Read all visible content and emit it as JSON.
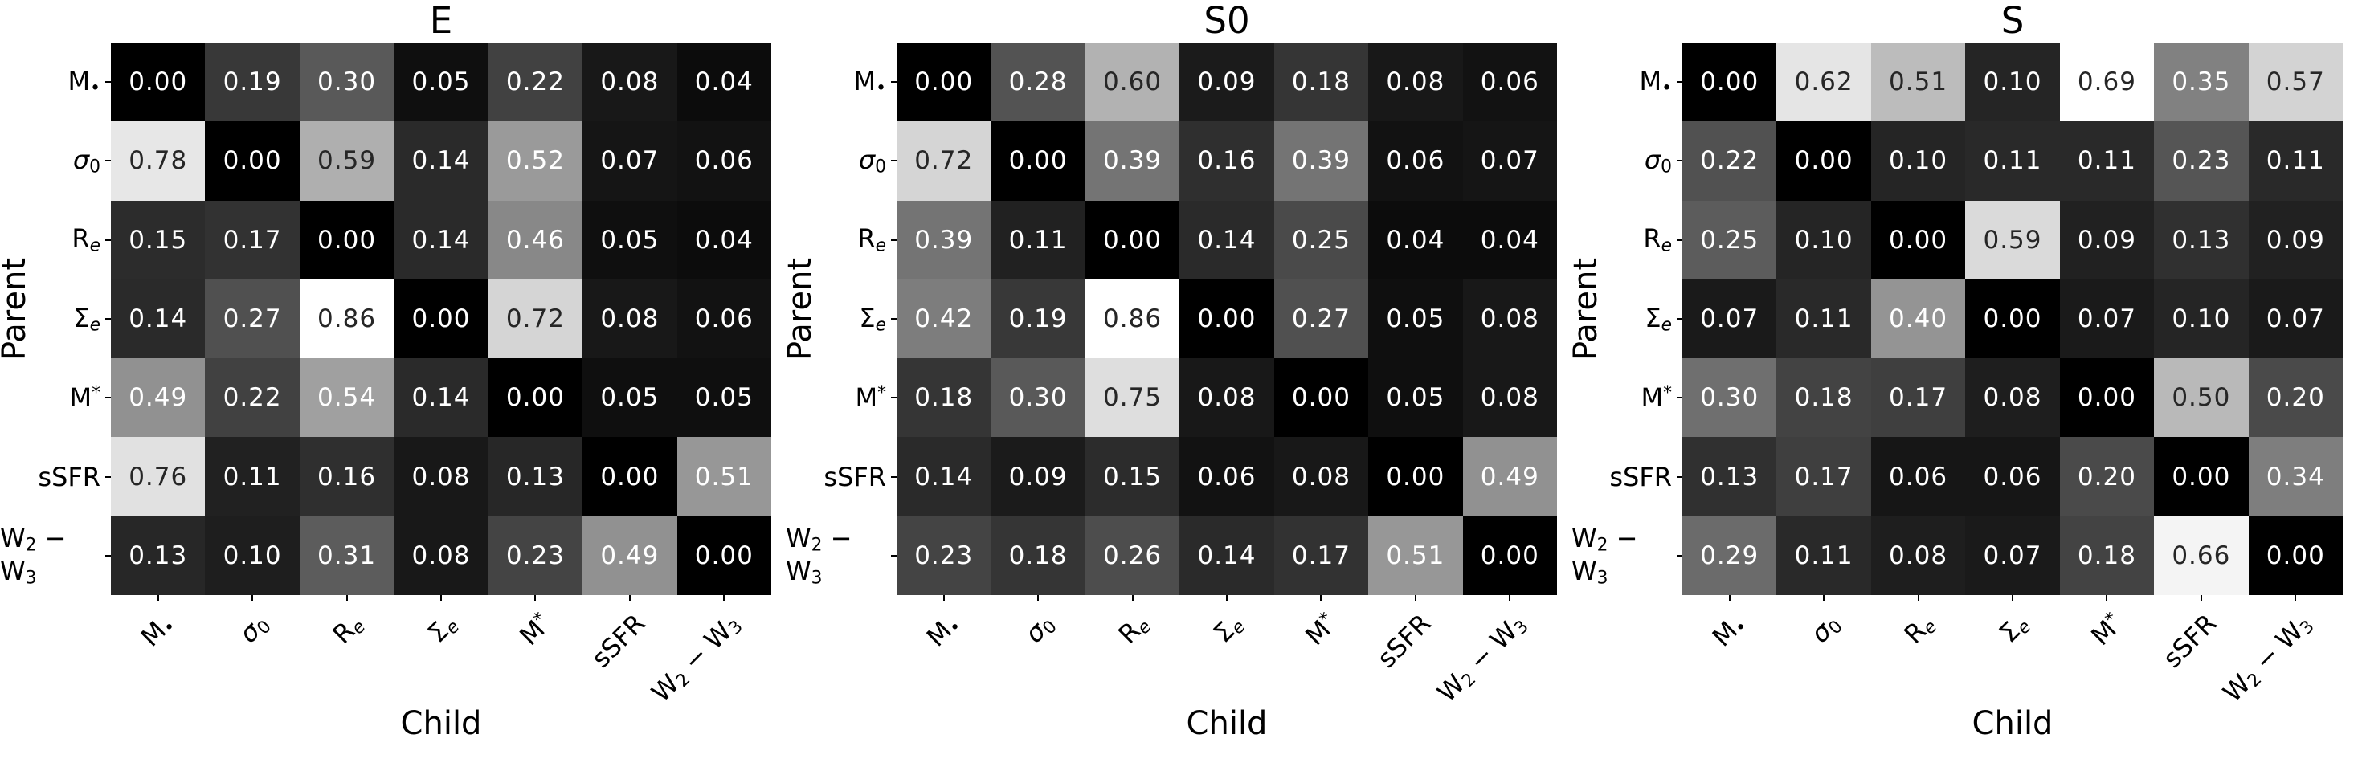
{
  "figure": {
    "background": "#ffffff",
    "annot_dark": "#262626",
    "annot_light": "#ffffff",
    "tick_color": "#000000",
    "text_color": "#000000"
  },
  "chart_data": {
    "type": "heatmap",
    "colormap": "gray (0 = black, per-panel max = white)",
    "annot_format": "two decimals",
    "xlabel": "Child",
    "ylabel": "Parent",
    "categories": [
      "M•",
      "σ0",
      "Re",
      "Σe",
      "M*",
      "sSFR",
      "W2 − W3"
    ],
    "label_parts": [
      [
        [
          "M",
          ""
        ],
        [
          "•",
          "sub"
        ]
      ],
      [
        [
          "σ",
          "it"
        ],
        [
          "0",
          "sub"
        ]
      ],
      [
        [
          "R",
          ""
        ],
        [
          "e",
          "subit"
        ]
      ],
      [
        [
          "Σ",
          ""
        ],
        [
          "e",
          "subit"
        ]
      ],
      [
        [
          "M",
          ""
        ],
        [
          "*",
          "sup"
        ]
      ],
      [
        [
          "sSFR",
          ""
        ]
      ],
      [
        [
          "W",
          ""
        ],
        [
          "2",
          "sub"
        ],
        [
          " − ",
          ""
        ],
        [
          "W",
          ""
        ],
        [
          "3",
          "sub"
        ]
      ]
    ],
    "panels": [
      {
        "title": "E",
        "vmin": 0.0,
        "vmax": 0.86,
        "matrix": [
          [
            0.0,
            0.19,
            0.3,
            0.05,
            0.22,
            0.08,
            0.04
          ],
          [
            0.78,
            0.0,
            0.59,
            0.14,
            0.52,
            0.07,
            0.06
          ],
          [
            0.15,
            0.17,
            0.0,
            0.14,
            0.46,
            0.05,
            0.04
          ],
          [
            0.14,
            0.27,
            0.86,
            0.0,
            0.72,
            0.08,
            0.06
          ],
          [
            0.49,
            0.22,
            0.54,
            0.14,
            0.0,
            0.05,
            0.05
          ],
          [
            0.76,
            0.11,
            0.16,
            0.08,
            0.13,
            0.0,
            0.51
          ],
          [
            0.13,
            0.1,
            0.31,
            0.08,
            0.23,
            0.49,
            0.0
          ]
        ]
      },
      {
        "title": "S0",
        "vmin": 0.0,
        "vmax": 0.86,
        "matrix": [
          [
            0.0,
            0.28,
            0.6,
            0.09,
            0.18,
            0.08,
            0.06
          ],
          [
            0.72,
            0.0,
            0.39,
            0.16,
            0.39,
            0.06,
            0.07
          ],
          [
            0.39,
            0.11,
            0.0,
            0.14,
            0.25,
            0.04,
            0.04
          ],
          [
            0.42,
            0.19,
            0.86,
            0.0,
            0.27,
            0.05,
            0.08
          ],
          [
            0.18,
            0.3,
            0.75,
            0.08,
            0.0,
            0.05,
            0.08
          ],
          [
            0.14,
            0.09,
            0.15,
            0.06,
            0.08,
            0.0,
            0.49
          ],
          [
            0.23,
            0.18,
            0.26,
            0.14,
            0.17,
            0.51,
            0.0
          ]
        ]
      },
      {
        "title": "S",
        "vmin": 0.0,
        "vmax": 0.69,
        "matrix": [
          [
            0.0,
            0.62,
            0.51,
            0.1,
            0.69,
            0.35,
            0.57
          ],
          [
            0.22,
            0.0,
            0.1,
            0.11,
            0.11,
            0.23,
            0.11
          ],
          [
            0.25,
            0.1,
            0.0,
            0.59,
            0.09,
            0.13,
            0.09
          ],
          [
            0.07,
            0.11,
            0.4,
            0.0,
            0.07,
            0.1,
            0.07
          ],
          [
            0.3,
            0.18,
            0.17,
            0.08,
            0.0,
            0.5,
            0.2
          ],
          [
            0.13,
            0.17,
            0.06,
            0.06,
            0.2,
            0.0,
            0.34
          ],
          [
            0.29,
            0.11,
            0.08,
            0.07,
            0.18,
            0.66,
            0.0
          ]
        ]
      }
    ]
  }
}
